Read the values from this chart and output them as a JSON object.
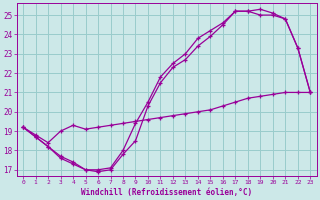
{
  "background_color": "#cce8e8",
  "grid_color": "#99cccc",
  "line_color": "#990099",
  "marker_color": "#990099",
  "xlabel": "Windchill (Refroidissement éolien,°C)",
  "xlabel_color": "#990099",
  "tick_color": "#990099",
  "xlim": [
    -0.5,
    23.5
  ],
  "ylim": [
    16.7,
    25.6
  ],
  "yticks": [
    17,
    18,
    19,
    20,
    21,
    22,
    23,
    24,
    25
  ],
  "xticks": [
    0,
    1,
    2,
    3,
    4,
    5,
    6,
    7,
    8,
    9,
    10,
    11,
    12,
    13,
    14,
    15,
    16,
    17,
    18,
    19,
    20,
    21,
    22,
    23
  ],
  "curve1_x": [
    0,
    1,
    2,
    3,
    4,
    5,
    6,
    7,
    8,
    9,
    10,
    11,
    12,
    13,
    14,
    15,
    16,
    17,
    18,
    19,
    20,
    21,
    22,
    23
  ],
  "curve1_y": [
    19.2,
    18.7,
    18.2,
    17.6,
    17.3,
    17.0,
    16.9,
    17.0,
    17.8,
    18.5,
    20.3,
    21.5,
    22.3,
    22.7,
    23.4,
    23.9,
    24.5,
    25.2,
    25.2,
    25.0,
    25.0,
    24.8,
    23.3,
    21.0
  ],
  "curve2_x": [
    0,
    1,
    2,
    3,
    4,
    5,
    6,
    7,
    8,
    9,
    10,
    11,
    12,
    13,
    14,
    15,
    16,
    17,
    18,
    19,
    20,
    21,
    22,
    23
  ],
  "curve2_y": [
    19.2,
    18.7,
    18.2,
    17.7,
    17.4,
    17.0,
    17.0,
    17.1,
    18.0,
    19.4,
    20.5,
    21.8,
    22.5,
    23.0,
    23.8,
    24.2,
    24.6,
    25.2,
    25.2,
    25.3,
    25.1,
    24.8,
    23.3,
    21.0
  ],
  "curve3_x": [
    0,
    1,
    2,
    3,
    4,
    5,
    6,
    7,
    8,
    9,
    10,
    11,
    12,
    13,
    14,
    15,
    16,
    17,
    18,
    19,
    20,
    21,
    22,
    23
  ],
  "curve3_y": [
    19.2,
    18.8,
    18.4,
    19.0,
    19.3,
    19.1,
    19.2,
    19.3,
    19.4,
    19.5,
    19.6,
    19.7,
    19.8,
    19.9,
    20.0,
    20.1,
    20.3,
    20.5,
    20.7,
    20.8,
    20.9,
    21.0,
    21.0,
    21.0
  ]
}
